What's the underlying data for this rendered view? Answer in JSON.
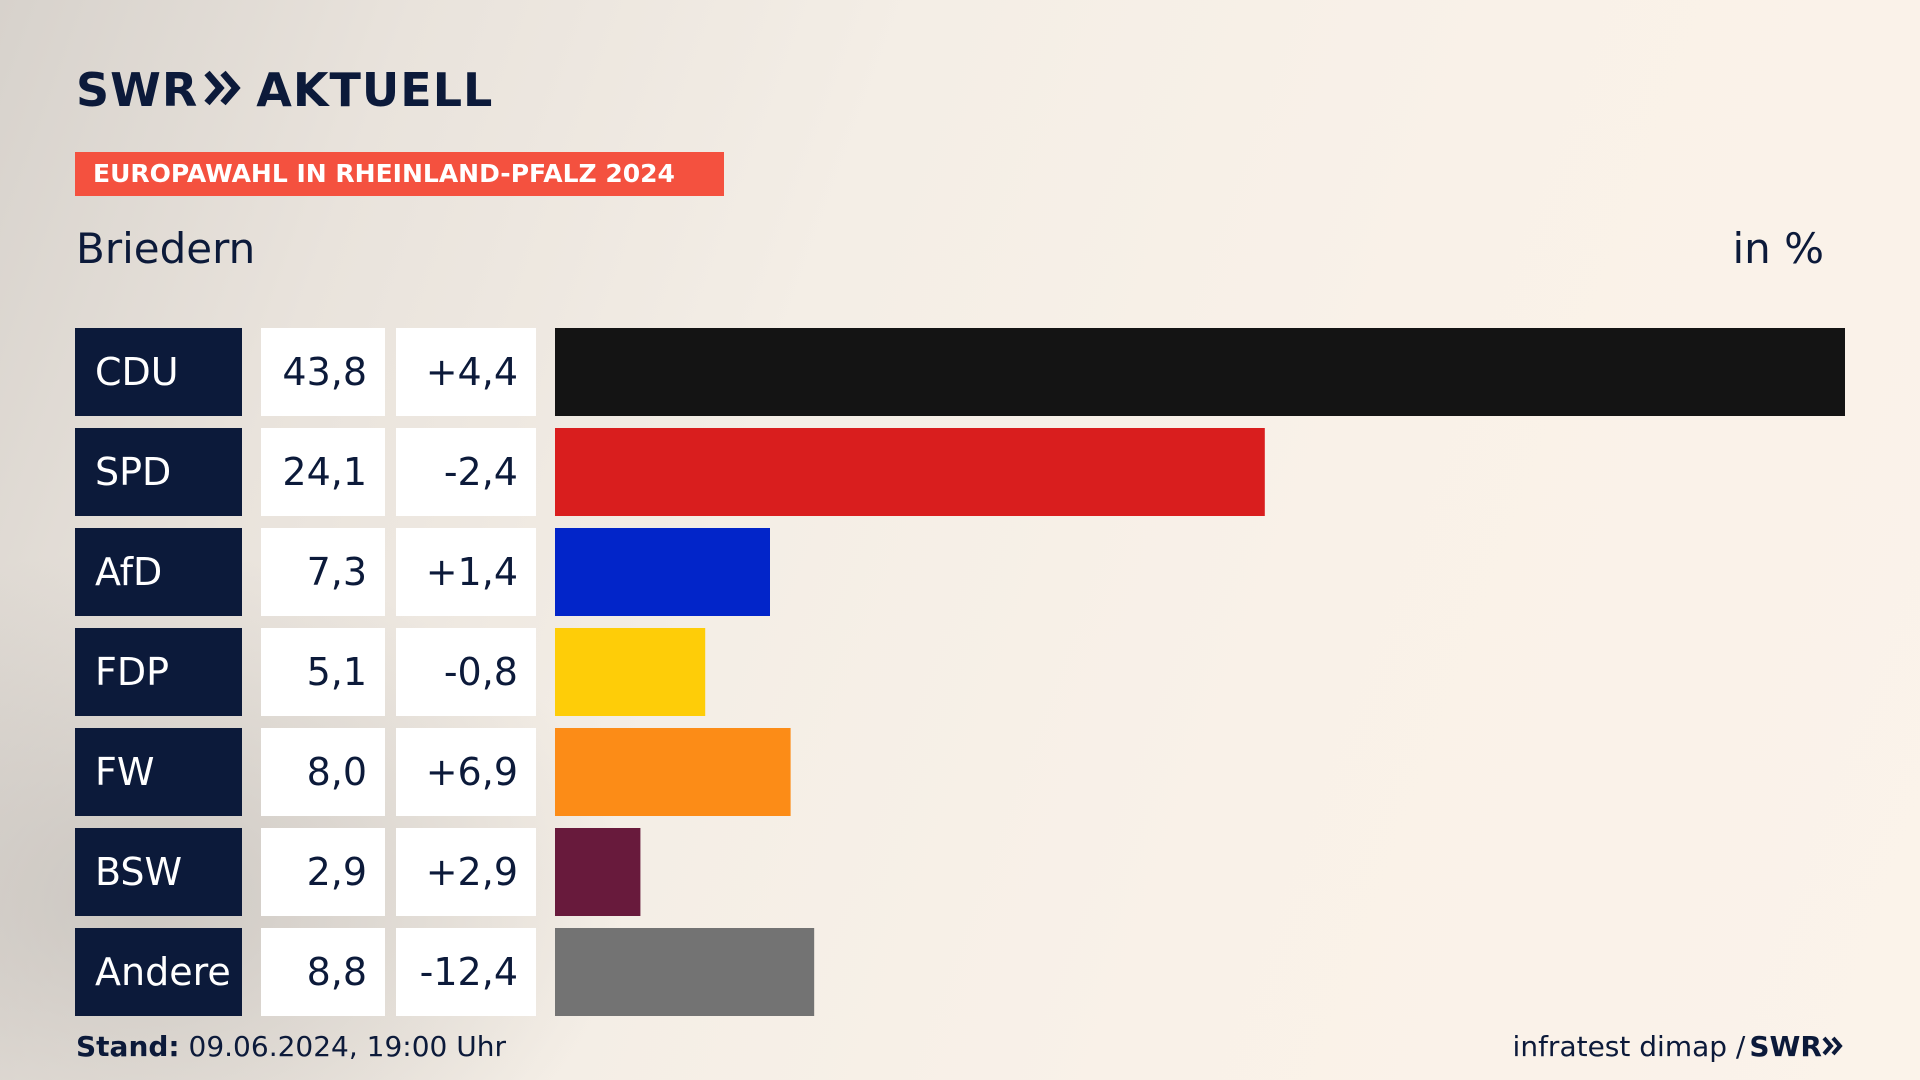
{
  "header": {
    "logo_text": "SWR",
    "logo_suffix": "AKTUELL",
    "badge": "EUROPAWAHL IN RHEINLAND-PFALZ 2024",
    "region": "Briedern",
    "unit": "in %"
  },
  "footer": {
    "stand_label": "Stand:",
    "stand_value": "09.06.2024, 19:00 Uhr",
    "source": "infratest dimap /",
    "source_logo": "SWR"
  },
  "colors": {
    "label_bg": "#0c1a3a",
    "accent_badge": "#f4513f"
  },
  "chart_data": {
    "type": "bar",
    "orientation": "horizontal",
    "categories": [
      "CDU",
      "SPD",
      "AfD",
      "FDP",
      "FW",
      "BSW",
      "Andere"
    ],
    "values": [
      43.8,
      24.1,
      7.3,
      5.1,
      8.0,
      2.9,
      8.8
    ],
    "value_labels": [
      "43,8",
      "24,1",
      "7,3",
      "5,1",
      "8,0",
      "2,9",
      "8,8"
    ],
    "change_labels": [
      "+4,4",
      "-2,4",
      "+1,4",
      "-0,8",
      "+6,9",
      "+2,9",
      "-12,4"
    ],
    "bar_colors": [
      "#141414",
      "#d91e1e",
      "#0225c9",
      "#fecd08",
      "#fc8c17",
      "#681a3c",
      "#737373"
    ],
    "xlim": [
      0,
      43.8
    ],
    "grid": false,
    "legend": "none"
  }
}
